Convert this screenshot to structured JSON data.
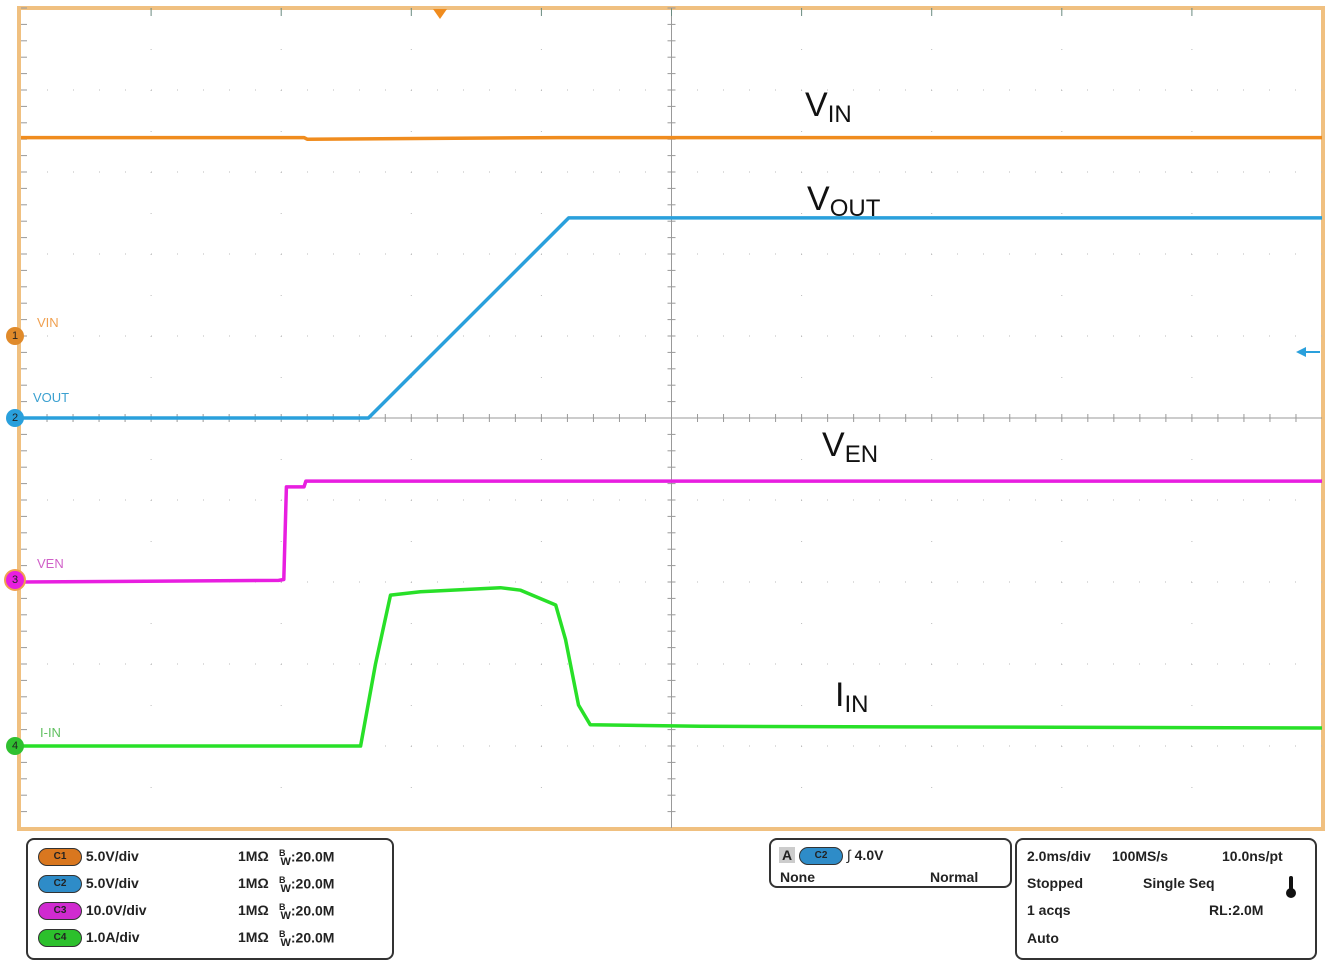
{
  "chart_data": {
    "type": "line",
    "title": "",
    "xlabel": "",
    "ylabel": "",
    "time_unit": "ms",
    "time_per_div": 2.0,
    "x_range_ms": [
      -6.45,
      13.55
    ],
    "trigger_time_ms": 0,
    "divisions": {
      "horizontal": 10,
      "vertical": 10
    },
    "grid": true,
    "series": [
      {
        "name": "VIN",
        "channel": "1",
        "color": "#f08c1e",
        "scale_per_div": 5.0,
        "unit": "V",
        "ground_div": 1,
        "t": [
          -6.45,
          -2.1,
          -2.05,
          1.8,
          13.55
        ],
        "values": [
          12.1,
          12.1,
          12.0,
          12.1,
          12.1
        ]
      },
      {
        "name": "VOUT",
        "channel": "2",
        "color": "#2aa0dc",
        "scale_per_div": 5.0,
        "unit": "V",
        "ground_div": 0,
        "t": [
          -6.45,
          -1.11,
          1.97,
          13.55
        ],
        "values": [
          0,
          0,
          12.2,
          12.2
        ]
      },
      {
        "name": "VEN",
        "channel": "3",
        "color": "#e81ee0",
        "scale_per_div": 10.0,
        "unit": "V",
        "ground_div": -2,
        "t": [
          -6.45,
          -2.49,
          -2.41,
          -2.37,
          -2.1,
          -2.07,
          13.55
        ],
        "values": [
          0,
          0.2,
          0.3,
          11.6,
          11.6,
          12.3,
          12.3
        ]
      },
      {
        "name": "I-IN",
        "channel": "4",
        "color": "#28e028",
        "scale_per_div": 1.0,
        "unit": "A",
        "ground_div": -4,
        "t": [
          -6.45,
          -1.23,
          -1.0,
          -0.77,
          -0.31,
          0.92,
          1.23,
          1.77,
          1.92,
          2.12,
          2.3,
          4.0,
          13.55
        ],
        "values": [
          0,
          0,
          1.0,
          1.84,
          1.88,
          1.93,
          1.9,
          1.72,
          1.3,
          0.5,
          0.26,
          0.24,
          0.22
        ]
      }
    ],
    "annotations": [
      {
        "main": "V",
        "sub": "IN"
      },
      {
        "main": "V",
        "sub": "OUT"
      },
      {
        "main": "V",
        "sub": "EN"
      },
      {
        "main": "I",
        "sub": "IN"
      }
    ]
  },
  "channel_labels": [
    "VIN",
    "VOUT",
    "VEN",
    "I-IN"
  ],
  "channel_markers": [
    "1",
    "2",
    "3",
    "4"
  ],
  "vertical_settings": [
    {
      "badge": "C1",
      "scale": "5.0V/div",
      "impedance": "1MΩ",
      "bw_prefix": "B",
      "bw_sub": "W",
      "bw": ":20.0M",
      "color": "#d9771f"
    },
    {
      "badge": "C2",
      "scale": "5.0V/div",
      "impedance": "1MΩ",
      "bw_prefix": "B",
      "bw_sub": "W",
      "bw": ":20.0M",
      "color": "#2e8cc8"
    },
    {
      "badge": "C3",
      "scale": "10.0V/div",
      "impedance": "1MΩ",
      "bw_prefix": "B",
      "bw_sub": "W",
      "bw": ":20.0M",
      "color": "#d02ad0"
    },
    {
      "badge": "C4",
      "scale": "1.0A/div",
      "impedance": "1MΩ",
      "bw_prefix": "B",
      "bw_sub": "W",
      "bw": ":20.0M",
      "color": "#2cc02c"
    }
  ],
  "trigger": {
    "label": "A",
    "source": "C2",
    "slope_icon": "rising-edge",
    "level": "4.0V",
    "coupling": "None",
    "mode": "Normal"
  },
  "acquisition": {
    "timebase": "2.0ms/div",
    "sample_rate": "100MS/s",
    "resolution": "10.0ns/pt",
    "state": "Stopped",
    "mode": "Single Seq",
    "acqs": "1 acqs",
    "record_length": "RL:2.0M",
    "trigger_mode": "Auto"
  }
}
